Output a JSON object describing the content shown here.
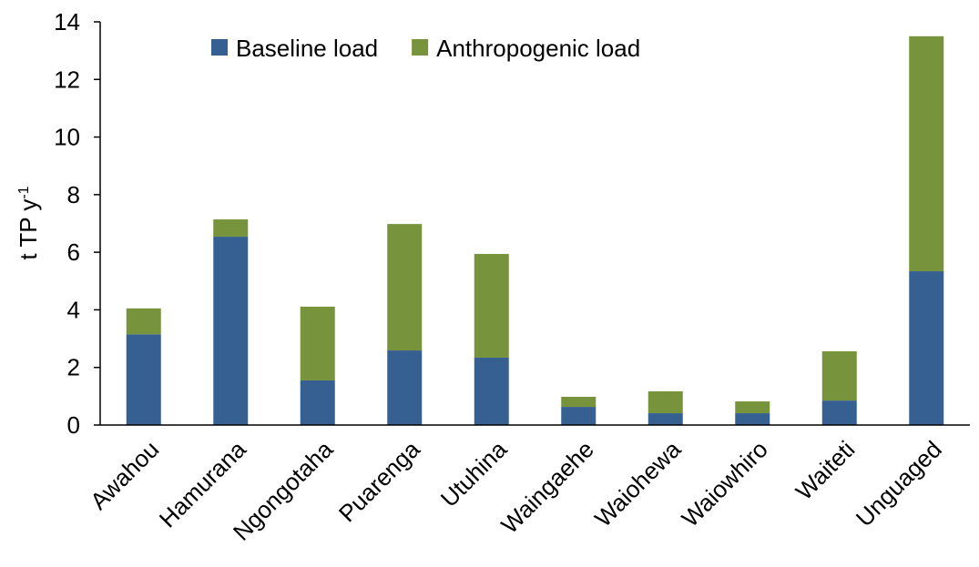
{
  "chart_data": {
    "type": "stacked_bar",
    "y_label": {
      "text": "t TP y",
      "superscript": "-1"
    },
    "categories": [
      "Awahou",
      "Hamurana",
      "Ngongotaha",
      "Puarenga",
      "Utuhina",
      "Waingaehe",
      "Waiohewa",
      "Waiowhiro",
      "Waiteti",
      "Unguaged"
    ],
    "series": [
      {
        "name": "Baseline load",
        "color": "#376092",
        "values": [
          3.15,
          6.54,
          1.55,
          2.59,
          2.34,
          0.63,
          0.41,
          0.41,
          0.85,
          5.34
        ]
      },
      {
        "name": "Anthropogenic load",
        "color": "#77933c",
        "values": [
          0.9,
          0.6,
          2.56,
          4.39,
          3.6,
          0.35,
          0.76,
          0.41,
          1.71,
          8.16
        ]
      }
    ],
    "ylim": [
      0,
      14
    ],
    "yticks": [
      0,
      2,
      4,
      6,
      8,
      10,
      12,
      14
    ],
    "grid": false,
    "legend": "top"
  }
}
